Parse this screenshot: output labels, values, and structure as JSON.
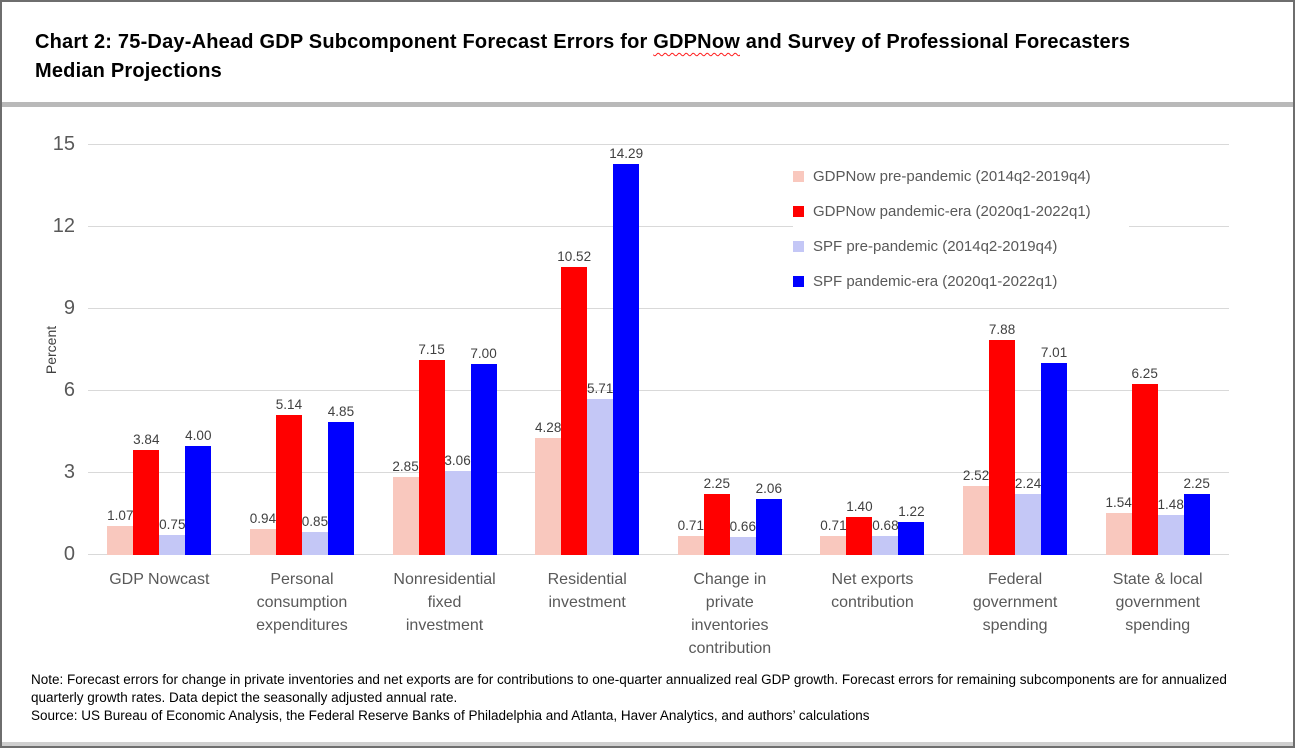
{
  "title": {
    "pre": "Chart 2: 75-Day-Ahead GDP Subcomponent Forecast Errors for ",
    "highlight": "GDPNow",
    "post": " and Survey of Professional Forecasters",
    "line2": "Median Projections"
  },
  "chart_data": {
    "type": "bar",
    "ylabel": "Percent",
    "ylim": [
      0,
      15
    ],
    "yticks": [
      0,
      3,
      6,
      9,
      12,
      15
    ],
    "grid": "horizontal",
    "gridline_color": "#d9d9d9",
    "legend_position": "inside-upper-right",
    "value_labels": true,
    "value_label_decimals": 2,
    "categories": [
      "GDP Nowcast",
      "Personal\nconsumption\nexpenditures",
      "Nonresidential\nfixed\ninvestment",
      "Residential\ninvestment",
      "Change in\nprivate\ninventories\ncontribution",
      "Net exports\ncontribution",
      "Federal\ngovernment\nspending",
      "State & local\ngovernment\nspending"
    ],
    "series": [
      {
        "name": "GDPNow pre-pandemic (2014q2-2019q4)",
        "color": "#f9c8be",
        "values": [
          1.07,
          0.94,
          2.85,
          4.28,
          0.71,
          0.71,
          2.52,
          1.54
        ]
      },
      {
        "name": "GDPNow pandemic-era (2020q1-2022q1)",
        "color": "#ff0000",
        "values": [
          3.84,
          5.14,
          7.15,
          10.52,
          2.25,
          1.4,
          7.88,
          6.25
        ]
      },
      {
        "name": "SPF pre-pandemic (2014q2-2019q4)",
        "color": "#c4c7f6",
        "values": [
          0.75,
          0.85,
          3.06,
          5.71,
          0.66,
          0.68,
          2.24,
          1.48
        ]
      },
      {
        "name": "SPF pandemic-era (2020q1-2022q1)",
        "color": "#0000ff",
        "values": [
          4.0,
          4.85,
          7.0,
          14.29,
          2.06,
          1.22,
          7.01,
          2.25
        ]
      }
    ]
  },
  "footnote": {
    "note": "Note:  Forecast errors for change in private inventories and net exports are for contributions to one-quarter annualized real GDP growth. Forecast errors for remaining subcomponents are for annualized quarterly growth rates. Data depict the seasonally adjusted annual rate.",
    "source": "Source: US Bureau of Economic Analysis, the Federal Reserve Banks of Philadelphia and Atlanta, Haver Analytics, and authors’ calculations"
  }
}
